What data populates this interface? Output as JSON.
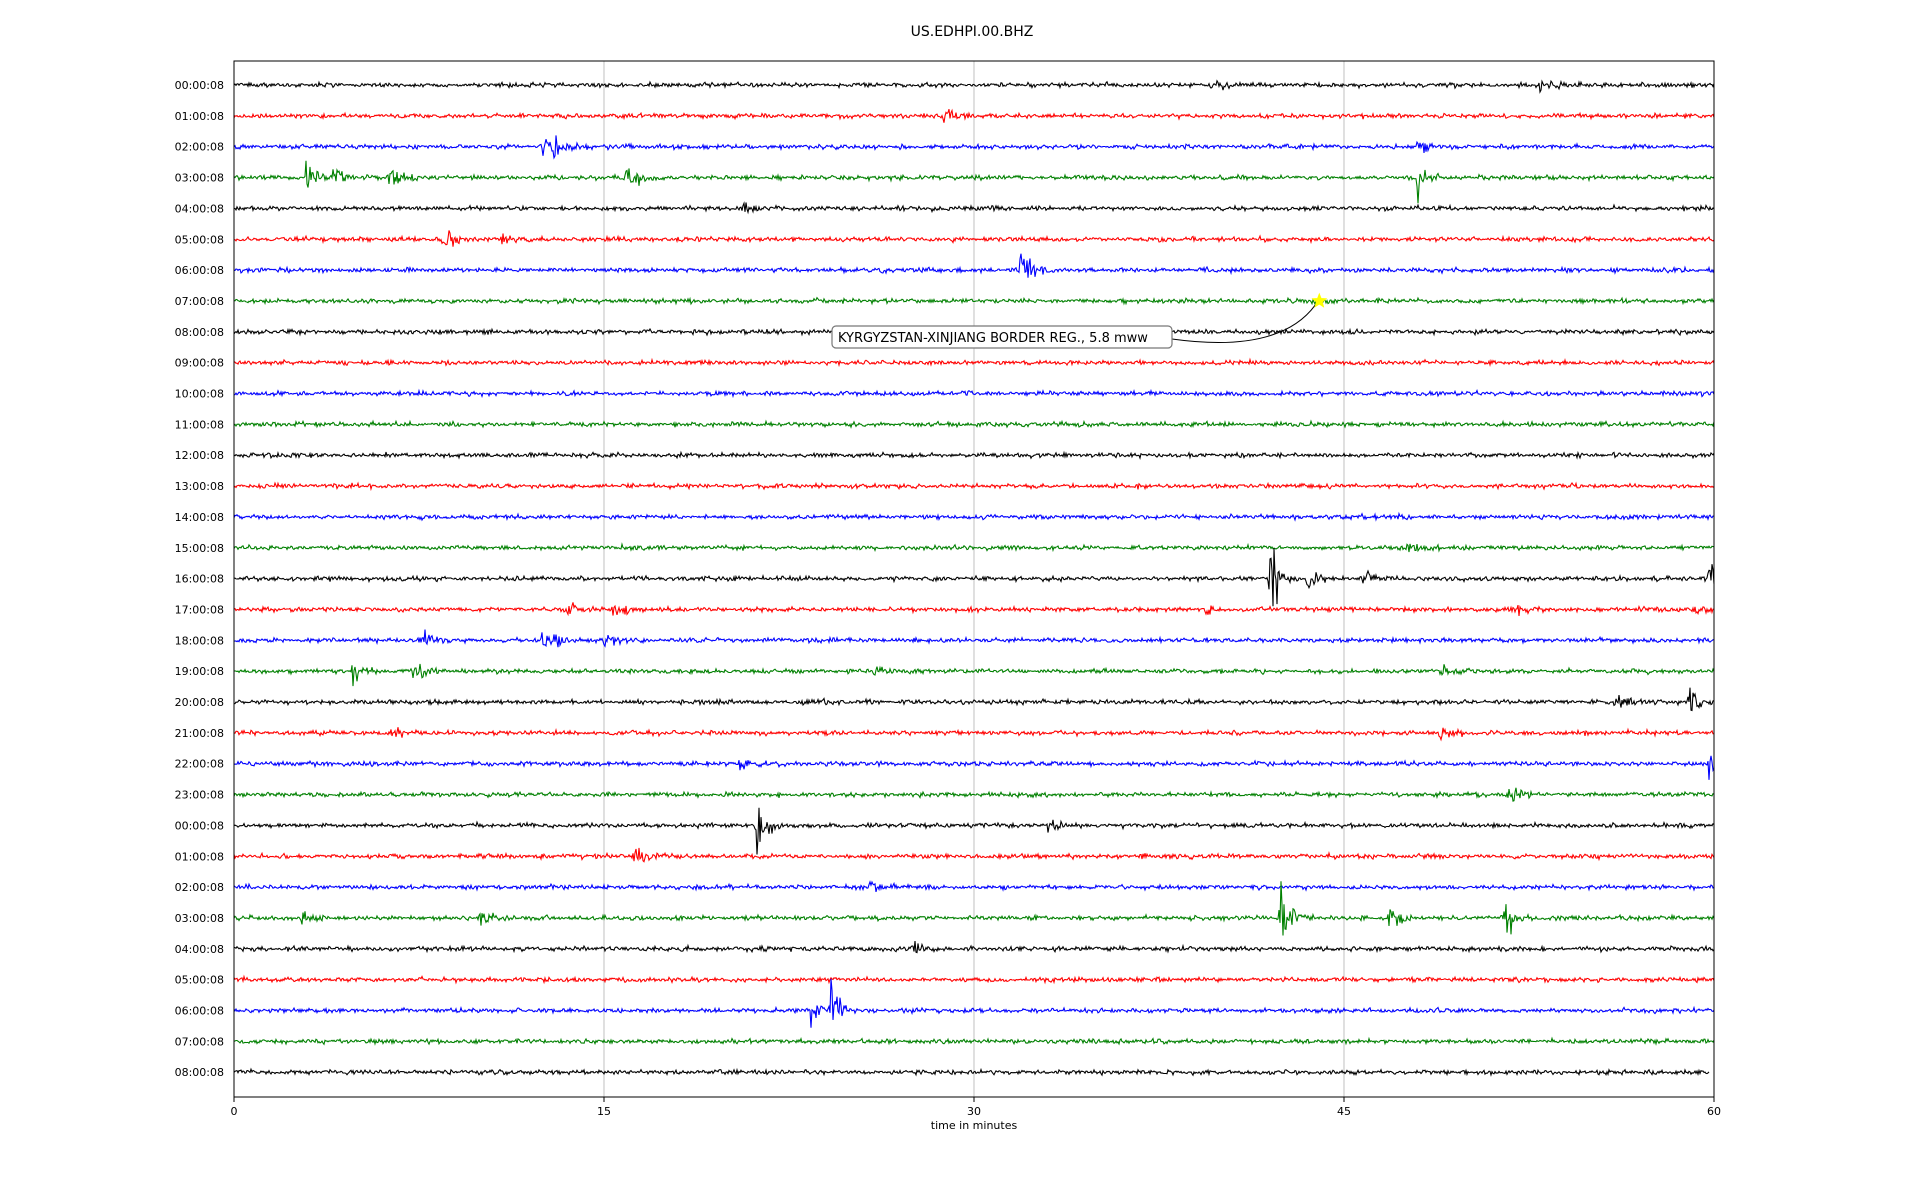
{
  "chart_data": {
    "type": "line",
    "title": "US.EDHPI.00.BHZ",
    "xlabel": "time in minutes",
    "ylabel": "",
    "xlim": [
      0,
      60
    ],
    "x_ticks": [
      0,
      15,
      30,
      45,
      60
    ],
    "grid": "vertical lines at x ticks",
    "row_labels": [
      "00:00:08",
      "01:00:08",
      "02:00:08",
      "03:00:08",
      "04:00:08",
      "05:00:08",
      "06:00:08",
      "07:00:08",
      "08:00:08",
      "09:00:08",
      "10:00:08",
      "11:00:08",
      "12:00:08",
      "13:00:08",
      "14:00:08",
      "15:00:08",
      "16:00:08",
      "17:00:08",
      "18:00:08",
      "19:00:08",
      "20:00:08",
      "21:00:08",
      "22:00:08",
      "23:00:08",
      "00:00:08",
      "01:00:08",
      "02:00:08",
      "03:00:08",
      "04:00:08",
      "05:00:08",
      "06:00:08",
      "07:00:08",
      "08:00:08"
    ],
    "color_cycle": [
      "#000000",
      "#ff0000",
      "#0000ff",
      "#008000"
    ],
    "annotation": {
      "text": "KYRGYZSTAN-XINJIANG BORDER REG., 5.8 mww",
      "row": 7,
      "minute": 44,
      "marker_color": "#ffff00"
    },
    "events": [
      {
        "row": 0,
        "minute": 39.6,
        "amp": 0.7
      },
      {
        "row": 0,
        "minute": 53.0,
        "amp": 0.6
      },
      {
        "row": 1,
        "minute": 28.8,
        "amp": 0.8
      },
      {
        "row": 2,
        "minute": 12.5,
        "amp": 0.8
      },
      {
        "row": 2,
        "minute": 13.0,
        "amp": 0.7
      },
      {
        "row": 2,
        "minute": 48.0,
        "amp": 0.8
      },
      {
        "row": 3,
        "minute": 2.9,
        "amp": 0.9
      },
      {
        "row": 3,
        "minute": 4.0,
        "amp": 0.8
      },
      {
        "row": 3,
        "minute": 6.3,
        "amp": 0.9
      },
      {
        "row": 3,
        "minute": 15.9,
        "amp": 1.6
      },
      {
        "row": 3,
        "minute": 48.0,
        "amp": 1.5
      },
      {
        "row": 4,
        "minute": 20.6,
        "amp": 0.6
      },
      {
        "row": 5,
        "minute": 8.5,
        "amp": 1.0
      },
      {
        "row": 5,
        "minute": 10.8,
        "amp": 0.5
      },
      {
        "row": 6,
        "minute": 31.9,
        "amp": 2.2
      },
      {
        "row": 15,
        "minute": 47.6,
        "amp": 0.4
      },
      {
        "row": 16,
        "minute": 42.0,
        "amp": 2.2
      },
      {
        "row": 16,
        "minute": 43.5,
        "amp": 0.8
      },
      {
        "row": 16,
        "minute": 45.7,
        "amp": 0.9
      },
      {
        "row": 16,
        "minute": 59.8,
        "amp": 1.0
      },
      {
        "row": 17,
        "minute": 13.5,
        "amp": 0.6
      },
      {
        "row": 17,
        "minute": 15.4,
        "amp": 0.8
      },
      {
        "row": 17,
        "minute": 39.4,
        "amp": 0.5
      },
      {
        "row": 17,
        "minute": 52.0,
        "amp": 0.7
      },
      {
        "row": 17,
        "minute": 59.1,
        "amp": 0.6
      },
      {
        "row": 18,
        "minute": 7.6,
        "amp": 0.6
      },
      {
        "row": 18,
        "minute": 12.5,
        "amp": 0.7
      },
      {
        "row": 18,
        "minute": 13.0,
        "amp": 0.6
      },
      {
        "row": 18,
        "minute": 15.0,
        "amp": 0.7
      },
      {
        "row": 19,
        "minute": 4.8,
        "amp": 0.8
      },
      {
        "row": 19,
        "minute": 7.3,
        "amp": 0.8
      },
      {
        "row": 19,
        "minute": 25.9,
        "amp": 0.6
      },
      {
        "row": 19,
        "minute": 49.0,
        "amp": 0.6
      },
      {
        "row": 20,
        "minute": 23.0,
        "amp": 0.5
      },
      {
        "row": 20,
        "minute": 56.0,
        "amp": 0.9
      },
      {
        "row": 20,
        "minute": 59.0,
        "amp": 0.8
      },
      {
        "row": 21,
        "minute": 6.4,
        "amp": 0.6
      },
      {
        "row": 21,
        "minute": 48.9,
        "amp": 0.7
      },
      {
        "row": 22,
        "minute": 20.5,
        "amp": 0.5
      },
      {
        "row": 22,
        "minute": 59.8,
        "amp": 0.8
      },
      {
        "row": 23,
        "minute": 51.7,
        "amp": 0.8
      },
      {
        "row": 24,
        "minute": 21.2,
        "amp": 1.8
      },
      {
        "row": 24,
        "minute": 33.0,
        "amp": 0.5
      },
      {
        "row": 25,
        "minute": 16.2,
        "amp": 0.5
      },
      {
        "row": 26,
        "minute": 25.8,
        "amp": 0.6
      },
      {
        "row": 27,
        "minute": 2.7,
        "amp": 0.8
      },
      {
        "row": 27,
        "minute": 10.0,
        "amp": 0.6
      },
      {
        "row": 27,
        "minute": 42.4,
        "amp": 2.4
      },
      {
        "row": 27,
        "minute": 46.8,
        "amp": 0.9
      },
      {
        "row": 27,
        "minute": 51.5,
        "amp": 1.7
      },
      {
        "row": 28,
        "minute": 27.5,
        "amp": 0.4
      },
      {
        "row": 30,
        "minute": 24.2,
        "amp": 1.8
      },
      {
        "row": 30,
        "minute": 23.4,
        "amp": 0.8
      }
    ]
  }
}
